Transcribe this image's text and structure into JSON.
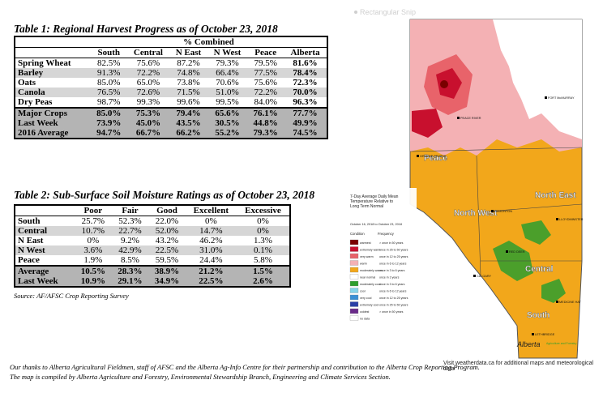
{
  "snip_label": "Rectangular Snip",
  "table1": {
    "title": "Table 1: Regional Harvest Progress as of October 23, 2018",
    "group_header": "% Combined",
    "columns": [
      "South",
      "Central",
      "N East",
      "N West",
      "Peace",
      "Alberta"
    ],
    "rows": [
      {
        "label": "Spring Wheat",
        "values": [
          "82.5%",
          "75.6%",
          "87.2%",
          "79.3%",
          "79.5%",
          "81.6%"
        ]
      },
      {
        "label": "Barley",
        "values": [
          "91.3%",
          "72.2%",
          "74.8%",
          "66.4%",
          "77.5%",
          "78.4%"
        ]
      },
      {
        "label": "Oats",
        "values": [
          "85.0%",
          "65.0%",
          "73.8%",
          "70.6%",
          "75.6%",
          "72.3%"
        ]
      },
      {
        "label": "Canola",
        "values": [
          "76.5%",
          "72.6%",
          "71.5%",
          "51.0%",
          "72.2%",
          "70.0%"
        ]
      },
      {
        "label": "Dry Peas",
        "values": [
          "98.7%",
          "99.3%",
          "99.6%",
          "99.5%",
          "84.0%",
          "96.3%"
        ]
      },
      {
        "label": "Major Crops",
        "values": [
          "85.0%",
          "75.3%",
          "79.4%",
          "65.6%",
          "76.1%",
          "77.7%"
        ]
      },
      {
        "label": "Last Week",
        "values": [
          "73.9%",
          "45.0%",
          "43.5%",
          "30.5%",
          "44.8%",
          "49.9%"
        ]
      },
      {
        "label": "2016 Average",
        "values": [
          "94.7%",
          "66.7%",
          "66.2%",
          "55.2%",
          "79.3%",
          "74.5%"
        ]
      }
    ]
  },
  "table2": {
    "title": "Table 2: Sub-Surface Soil Moisture Ratings as of October 23, 2018",
    "columns": [
      "Poor",
      "Fair",
      "Good",
      "Excellent",
      "Excessive"
    ],
    "rows": [
      {
        "label": "South",
        "values": [
          "25.7%",
          "52.3%",
          "22.0%",
          "0%",
          "0%"
        ]
      },
      {
        "label": "Central",
        "values": [
          "10.7%",
          "22.7%",
          "52.0%",
          "14.7%",
          "0%"
        ]
      },
      {
        "label": "N East",
        "values": [
          "0%",
          "9.2%",
          "43.2%",
          "46.2%",
          "1.3%"
        ]
      },
      {
        "label": "N West",
        "values": [
          "3.6%",
          "42.9%",
          "22.5%",
          "31.0%",
          "0.1%"
        ]
      },
      {
        "label": "Peace",
        "values": [
          "1.9%",
          "8.5%",
          "59.5%",
          "24.4%",
          "5.8%"
        ]
      },
      {
        "label": "Average",
        "values": [
          "10.5%",
          "28.3%",
          "38.9%",
          "21.2%",
          "1.5%"
        ]
      },
      {
        "label": "Last Week",
        "values": [
          "10.9%",
          "29.1%",
          "34.9%",
          "22.5%",
          "2.6%"
        ]
      }
    ]
  },
  "source": "Source: AF/AFSC Crop Reporting Survey",
  "footer": [
    "Our thanks to Alberta Agricultural Fieldmen, staff of AFSC and the Alberta Ag-Info Centre for their partnership and contribution to the Alberta Crop Reporting Program.",
    "The map is compiled by Alberta Agriculture and Forestry, Environmental Stewardship Branch, Engineering and Climate Services Section."
  ],
  "map": {
    "regions": [
      "Peace",
      "North East",
      "North West",
      "Central",
      "South"
    ],
    "cities": [
      "PEACE RIVER",
      "FORT McMURRAY",
      "GRANDE PRAIRIE",
      "EDMONTON",
      "LLOYDMINSTER",
      "RED DEER",
      "CALGARY",
      "LETHBRIDGE",
      "MEDICINE HAT"
    ],
    "legend_title": "7-Day Average Daily Mean Temperature Relative to Long Term Normal",
    "legend_dates": "October 16, 2018 to October 23, 2018",
    "legend_col_condition": "Condition",
    "legend_col_frequency": "Frequency",
    "legend_items": [
      {
        "condition": "warmest",
        "frequency": "> once in 50 years",
        "color": "#7a0000"
      },
      {
        "condition": "extremely warm",
        "frequency": "once in 25 to 50 years",
        "color": "#c8102e"
      },
      {
        "condition": "very warm",
        "frequency": "once in 12 to 25 years",
        "color": "#e8636a"
      },
      {
        "condition": "warm",
        "frequency": "once in 6 to 12 years",
        "color": "#f4b1b4"
      },
      {
        "condition": "moderately warm",
        "frequency": "once in 3 to 6 years",
        "color": "#f2a71b"
      },
      {
        "condition": "near normal",
        "frequency": "once in 3 years",
        "color": "#ffffff"
      },
      {
        "condition": "moderately cool",
        "frequency": "once in 3 to 6 years",
        "color": "#2e9e2e"
      },
      {
        "condition": "cool",
        "frequency": "once in 6 to 12 years",
        "color": "#86d4e8"
      },
      {
        "condition": "very cool",
        "frequency": "once in 12 to 25 years",
        "color": "#3a8fd4"
      },
      {
        "condition": "extremely cool",
        "frequency": "once in 25 to 50 years",
        "color": "#2a3fa6"
      },
      {
        "condition": "coldest",
        "frequency": "> once in 50 years",
        "color": "#6a2a8a"
      },
      {
        "condition": "no data",
        "frequency": "",
        "color": "#ffffff"
      }
    ],
    "logo": "Alberta",
    "logo_sub": "Agriculture and Forestry",
    "visit": "Visit weatherdata.ca for additional maps and meteorological data"
  }
}
